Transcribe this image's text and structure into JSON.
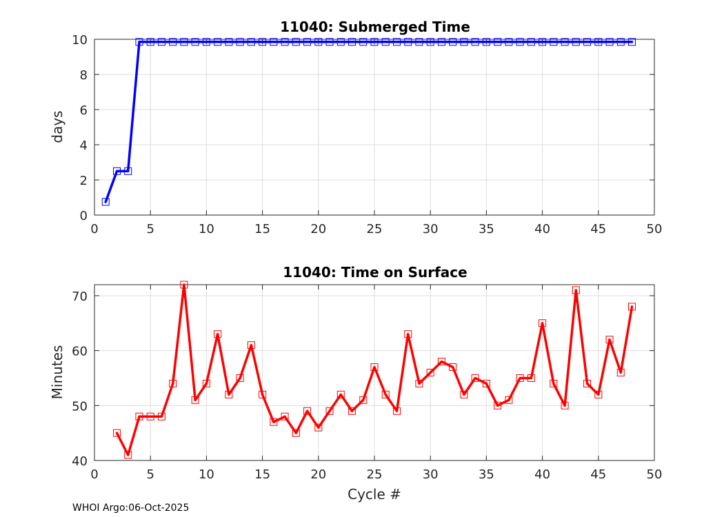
{
  "footer": "WHOI Argo:06-Oct-2025",
  "chart_data": [
    {
      "type": "line",
      "title": "11040: Submerged Time",
      "xlabel": "",
      "ylabel": "days",
      "xlim": [
        0,
        50
      ],
      "ylim": [
        0,
        10
      ],
      "xticks": [
        0,
        5,
        10,
        15,
        20,
        25,
        30,
        35,
        40,
        45,
        50
      ],
      "yticks": [
        0,
        2,
        4,
        6,
        8,
        10
      ],
      "grid": true,
      "color": "#0000ff",
      "marker": "square",
      "series": [
        {
          "x": [
            1,
            2,
            3,
            4,
            5,
            6,
            7,
            8,
            9,
            10,
            11,
            12,
            13,
            14,
            15,
            16,
            17,
            18,
            19,
            20,
            21,
            22,
            23,
            24,
            25,
            26,
            27,
            28,
            29,
            30,
            31,
            32,
            33,
            34,
            35,
            36,
            37,
            38,
            39,
            40,
            41,
            42,
            43,
            44,
            45,
            46,
            47,
            48
          ],
          "values": [
            0.75,
            2.5,
            2.5,
            9.85,
            9.85,
            9.85,
            9.85,
            9.85,
            9.85,
            9.85,
            9.85,
            9.85,
            9.85,
            9.85,
            9.85,
            9.85,
            9.85,
            9.85,
            9.85,
            9.85,
            9.85,
            9.85,
            9.85,
            9.85,
            9.85,
            9.85,
            9.85,
            9.85,
            9.85,
            9.85,
            9.85,
            9.85,
            9.85,
            9.85,
            9.85,
            9.85,
            9.85,
            9.85,
            9.85,
            9.85,
            9.85,
            9.85,
            9.85,
            9.85,
            9.85,
            9.85,
            9.85,
            9.85
          ]
        }
      ]
    },
    {
      "type": "line",
      "title": "11040: Time on Surface",
      "xlabel": "Cycle #",
      "ylabel": "Minutes",
      "xlim": [
        0,
        50
      ],
      "ylim": [
        40,
        72
      ],
      "xticks": [
        0,
        5,
        10,
        15,
        20,
        25,
        30,
        35,
        40,
        45,
        50
      ],
      "yticks": [
        40,
        50,
        60,
        70
      ],
      "grid": true,
      "color": "#ff0000",
      "marker": "square",
      "series": [
        {
          "x": [
            2,
            3,
            4,
            5,
            6,
            7,
            8,
            9,
            10,
            11,
            12,
            13,
            14,
            15,
            16,
            17,
            18,
            19,
            20,
            21,
            22,
            23,
            24,
            25,
            26,
            27,
            28,
            29,
            30,
            31,
            32,
            33,
            34,
            35,
            36,
            37,
            38,
            39,
            40,
            41,
            42,
            43,
            44,
            45,
            46,
            47,
            48
          ],
          "values": [
            45,
            41,
            48,
            48,
            48,
            54,
            72,
            51,
            54,
            63,
            52,
            55,
            61,
            52,
            47,
            48,
            45,
            49,
            46,
            49,
            52,
            49,
            51,
            57,
            52,
            49,
            63,
            54,
            56,
            58,
            57,
            52,
            55,
            54,
            50,
            51,
            55,
            55,
            65,
            54,
            50,
            71,
            54,
            52,
            62,
            56,
            68
          ]
        }
      ]
    }
  ]
}
